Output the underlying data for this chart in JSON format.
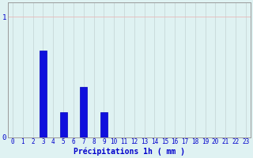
{
  "hours": [
    0,
    1,
    2,
    3,
    4,
    5,
    6,
    7,
    8,
    9,
    10,
    11,
    12,
    13,
    14,
    15,
    16,
    17,
    18,
    19,
    20,
    21,
    22,
    23
  ],
  "values": [
    0,
    0,
    0,
    0.72,
    0,
    0.21,
    0,
    0.42,
    0,
    0.21,
    0,
    0,
    0,
    0,
    0,
    0,
    0,
    0,
    0,
    0,
    0,
    0,
    0,
    0
  ],
  "bar_color": "#1010dd",
  "bar_edge_color": "#0000bb",
  "background_color": "#dff2f2",
  "grid_color_h": "#e8b8b8",
  "grid_color_v": "#c8d8d8",
  "xlabel": "Précipitations 1h ( mm )",
  "xlabel_color": "#0000cc",
  "ytick_labels": [
    "0",
    "1"
  ],
  "ytick_values": [
    0,
    1
  ],
  "ylim": [
    0,
    1.12
  ],
  "xlim": [
    -0.5,
    23.5
  ],
  "tick_label_color": "#0000cc",
  "tick_fontsize": 5.5,
  "xlabel_fontsize": 7.0,
  "bar_width": 0.7
}
